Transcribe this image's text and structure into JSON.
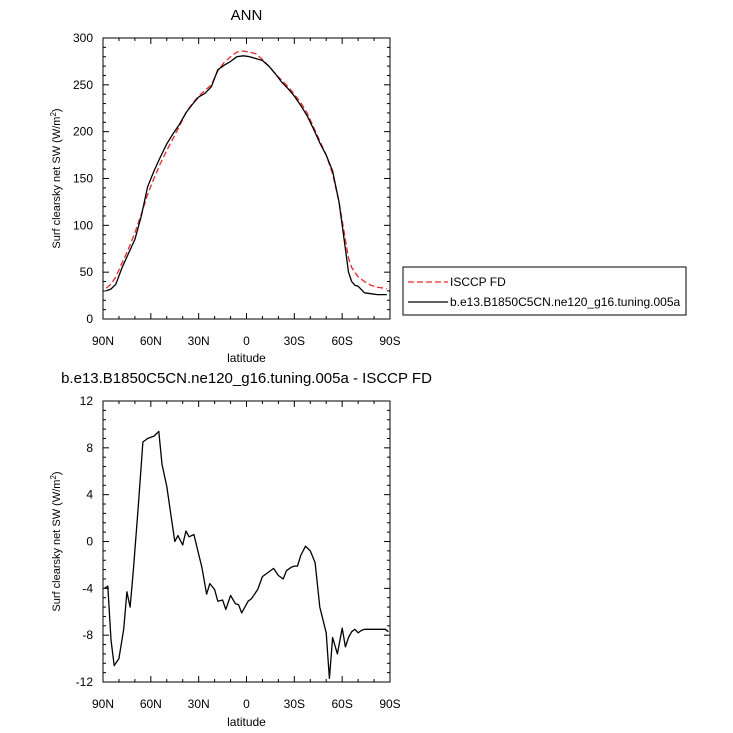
{
  "chart_data": [
    {
      "type": "line",
      "title": "ANN",
      "xlabel": "latitude",
      "ylabel": "Surf clearsky net SW (W/m",
      "ylabel_sup": "2",
      "ylabel_close": ")",
      "xlim": [
        90,
        -90
      ],
      "ylim": [
        0,
        300
      ],
      "x_ticks": [
        90,
        60,
        30,
        0,
        -30,
        -60,
        -90
      ],
      "x_tick_labels": [
        "90N",
        "60N",
        "30N",
        "0",
        "30S",
        "60S",
        "90S"
      ],
      "y_ticks": [
        0,
        50,
        100,
        150,
        200,
        250,
        300
      ],
      "y_tick_labels": [
        "0",
        "50",
        "100",
        "150",
        "200",
        "250",
        "300"
      ],
      "grid": false,
      "legend_placement": "right",
      "series": [
        {
          "name": "ISCCP FD",
          "color": "#e8282b",
          "dash": true,
          "x": [
            88,
            85,
            82,
            78,
            74,
            70,
            66,
            62,
            58,
            54,
            50,
            46,
            42,
            38,
            34,
            30,
            26,
            22,
            18,
            14,
            10,
            6,
            2,
            -2,
            -6,
            -10,
            -14,
            -18,
            -22,
            -26,
            -30,
            -34,
            -38,
            -42,
            -46,
            -50,
            -54,
            -58,
            -60,
            -62,
            -64,
            -66,
            -68,
            -70,
            -74,
            -78,
            -82,
            -86,
            -88
          ],
          "y": [
            33,
            37,
            45,
            60,
            75,
            92,
            112,
            133,
            150,
            166,
            180,
            193,
            206,
            220,
            230,
            238,
            244,
            250,
            265,
            274,
            280,
            285,
            286,
            285,
            283,
            277,
            270,
            262,
            255,
            248,
            240,
            231,
            220,
            205,
            190,
            175,
            155,
            125,
            105,
            85,
            65,
            55,
            50,
            45,
            40,
            36,
            34,
            33,
            32
          ]
        },
        {
          "name": "b.e13.B1850C5CN.ne120_g16.tuning.005a",
          "color": "#000000",
          "dash": false,
          "x": [
            88,
            85,
            82,
            78,
            74,
            70,
            66,
            62,
            58,
            54,
            50,
            46,
            42,
            38,
            34,
            30,
            26,
            22,
            18,
            14,
            10,
            6,
            2,
            -2,
            -6,
            -10,
            -14,
            -18,
            -22,
            -26,
            -30,
            -34,
            -38,
            -42,
            -46,
            -50,
            -54,
            -58,
            -60,
            -62,
            -64,
            -66,
            -68,
            -70,
            -74,
            -78,
            -82,
            -86,
            -88
          ],
          "y": [
            30,
            32,
            37,
            55,
            70,
            85,
            110,
            141,
            158,
            173,
            187,
            198,
            208,
            220,
            229,
            237,
            241,
            248,
            266,
            271,
            275,
            280,
            281,
            280,
            278,
            276,
            270,
            262,
            253,
            246,
            238,
            228,
            217,
            203,
            188,
            175,
            158,
            125,
            100,
            75,
            50,
            40,
            36,
            35,
            28,
            27,
            26,
            26,
            26
          ]
        }
      ]
    },
    {
      "type": "line",
      "title": "b.e13.B1850C5CN.ne120_g16.tuning.005a - ISCCP FD",
      "xlabel": "latitude",
      "ylabel": "Surf clearsky net SW (W/m",
      "ylabel_sup": "2",
      "ylabel_close": ")",
      "xlim": [
        90,
        -90
      ],
      "ylim": [
        -12,
        12
      ],
      "x_ticks": [
        90,
        60,
        30,
        0,
        -30,
        -60,
        -90
      ],
      "x_tick_labels": [
        "90N",
        "60N",
        "30N",
        "0",
        "30S",
        "60S",
        "90S"
      ],
      "y_ticks": [
        -12,
        -8,
        -4,
        0,
        4,
        8,
        12
      ],
      "y_tick_labels": [
        "-12",
        "-8",
        "-4",
        "0",
        "4",
        "8",
        "12"
      ],
      "grid": false,
      "series": [
        {
          "color": "#000000",
          "dash": false,
          "x": [
            89,
            87,
            85,
            83,
            80,
            77,
            75,
            73,
            71,
            68,
            65,
            62,
            58,
            55,
            53,
            50,
            48,
            45,
            43,
            40,
            38,
            36,
            33,
            30,
            28,
            25,
            23,
            20,
            18,
            15,
            13,
            10,
            7,
            5,
            3,
            1,
            -1,
            -3,
            -5,
            -7,
            -10,
            -13,
            -17,
            -20,
            -23,
            -25,
            -28,
            -30,
            -32,
            -34,
            -37,
            -40,
            -43,
            -46,
            -50,
            -52,
            -54,
            -57,
            -60,
            -62,
            -64,
            -66,
            -68,
            -70,
            -72,
            -74,
            -76,
            -78,
            -80,
            -82,
            -84,
            -87,
            -89
          ],
          "y": [
            -4.0,
            -3.8,
            -8.4,
            -10.6,
            -10.0,
            -7.5,
            -4.3,
            -5.6,
            -2.5,
            2.8,
            8.5,
            8.8,
            9.0,
            9.4,
            6.6,
            4.7,
            2.8,
            0.0,
            0.5,
            -0.3,
            0.9,
            0.4,
            0.6,
            -1.1,
            -2.2,
            -4.5,
            -3.6,
            -4.1,
            -5.1,
            -5.0,
            -5.8,
            -4.6,
            -5.3,
            -5.4,
            -6.1,
            -5.6,
            -5.1,
            -4.9,
            -4.5,
            -4.1,
            -3.0,
            -2.7,
            -2.3,
            -2.9,
            -3.2,
            -2.5,
            -2.2,
            -2.1,
            -2.1,
            -1.2,
            -0.4,
            -0.8,
            -1.8,
            -5.6,
            -7.8,
            -11.7,
            -8.2,
            -9.6,
            -7.4,
            -9.0,
            -8.2,
            -7.7,
            -7.5,
            -7.8,
            -7.6,
            -7.5,
            -7.5,
            -7.5,
            -7.5,
            -7.5,
            -7.5,
            -7.5,
            -7.7
          ]
        }
      ]
    }
  ]
}
